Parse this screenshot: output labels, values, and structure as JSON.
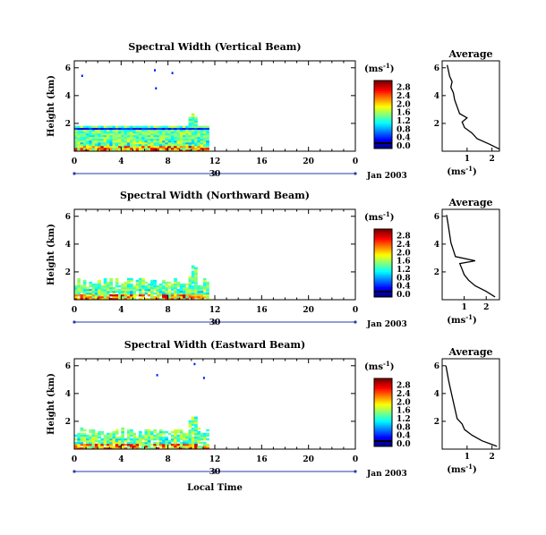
{
  "figure": {
    "xlabel": "Local Time",
    "date_label": "Jan 2003",
    "day_label": "30",
    "unit_label": "(ms",
    "unit_exp": "-1",
    "average_title": "Average"
  },
  "chart_data": [
    {
      "type": "heatmap",
      "title": "Spectral Width (Vertical Beam)",
      "ylabel": "Height (km)",
      "xlim": [
        0,
        24
      ],
      "ylim": [
        0,
        6.5
      ],
      "xticks": [
        "0",
        "4",
        "8",
        "12",
        "16",
        "20",
        "0"
      ],
      "yticks": [
        "2",
        "4",
        "6"
      ],
      "data_end_hour": 11.5,
      "colorbar": {
        "ticks": [
          "0.0",
          "0.4",
          "0.8",
          "1.2",
          "1.6",
          "2.0",
          "2.4",
          "2.8"
        ],
        "range": [
          0,
          3.0
        ],
        "unit": "(ms^-1)"
      },
      "profile": [
        {
          "h": 0.15,
          "w": 2.3
        },
        {
          "h": 0.5,
          "w": 1.9
        },
        {
          "h": 0.9,
          "w": 1.4
        },
        {
          "h": 1.3,
          "w": 1.2
        },
        {
          "h": 1.7,
          "w": 0.9
        },
        {
          "h": 2.1,
          "w": 0.8
        },
        {
          "h": 2.4,
          "w": 1.0
        },
        {
          "h": 2.7,
          "w": 0.7
        },
        {
          "h": 3.2,
          "w": 0.6
        },
        {
          "h": 3.7,
          "w": 0.5
        },
        {
          "h": 4.2,
          "w": 0.45
        },
        {
          "h": 4.6,
          "w": 0.35
        },
        {
          "h": 5.0,
          "w": 0.4
        },
        {
          "h": 5.4,
          "w": 0.3
        },
        {
          "h": 5.8,
          "w": 0.25
        },
        {
          "h": 6.2,
          "w": 0.2
        }
      ],
      "profile_xticks": [
        "1",
        "2"
      ],
      "profile_yticks": [
        "2",
        "4",
        "6"
      ],
      "profile_xlim": [
        0,
        2.3
      ],
      "profile_xlabel": "(ms^-1)"
    },
    {
      "type": "heatmap",
      "title": "Spectral Width (Northward Beam)",
      "ylabel": "Height (km)",
      "xlim": [
        0,
        24
      ],
      "ylim": [
        0,
        6.5
      ],
      "xticks": [
        "0",
        "4",
        "8",
        "12",
        "16",
        "20",
        "0"
      ],
      "yticks": [
        "2",
        "4",
        "6"
      ],
      "data_end_hour": 11.5,
      "colorbar": {
        "ticks": [
          "0.0",
          "0.4",
          "0.8",
          "1.2",
          "1.6",
          "2.0",
          "2.4",
          "2.8"
        ],
        "range": [
          0,
          3.0
        ],
        "unit": "(ms^-1)"
      },
      "profile": [
        {
          "h": 0.2,
          "w": 2.4
        },
        {
          "h": 0.6,
          "w": 2.0
        },
        {
          "h": 1.0,
          "w": 1.5
        },
        {
          "h": 1.4,
          "w": 1.2
        },
        {
          "h": 1.8,
          "w": 1.0
        },
        {
          "h": 2.2,
          "w": 0.9
        },
        {
          "h": 2.6,
          "w": 0.8
        },
        {
          "h": 2.8,
          "w": 1.5
        },
        {
          "h": 3.1,
          "w": 0.6
        },
        {
          "h": 3.6,
          "w": 0.5
        },
        {
          "h": 4.1,
          "w": 0.4
        },
        {
          "h": 4.6,
          "w": 0.35
        },
        {
          "h": 5.1,
          "w": 0.3
        },
        {
          "h": 5.6,
          "w": 0.25
        },
        {
          "h": 6.1,
          "w": 0.2
        }
      ],
      "profile_xticks": [
        "1",
        "2"
      ],
      "profile_yticks": [
        "2",
        "4",
        "6"
      ],
      "profile_xlim": [
        0,
        2.6
      ],
      "profile_xlabel": "(ms^-1)"
    },
    {
      "type": "heatmap",
      "title": "Spectral Width (Eastward Beam)",
      "ylabel": "Height (km)",
      "xlim": [
        0,
        24
      ],
      "ylim": [
        0,
        6.5
      ],
      "xticks": [
        "0",
        "4",
        "8",
        "12",
        "16",
        "20",
        "0"
      ],
      "yticks": [
        "2",
        "4",
        "6"
      ],
      "data_end_hour": 11.5,
      "colorbar": {
        "ticks": [
          "0.0",
          "0.4",
          "0.8",
          "1.2",
          "1.6",
          "2.0",
          "2.4",
          "2.8"
        ],
        "range": [
          0,
          3.0
        ],
        "unit": "(ms^-1)"
      },
      "profile": [
        {
          "h": 0.2,
          "w": 2.2
        },
        {
          "h": 0.6,
          "w": 1.6
        },
        {
          "h": 1.0,
          "w": 1.2
        },
        {
          "h": 1.4,
          "w": 0.9
        },
        {
          "h": 1.8,
          "w": 0.8
        },
        {
          "h": 2.2,
          "w": 0.6
        },
        {
          "h": 2.6,
          "w": 0.55
        },
        {
          "h": 3.0,
          "w": 0.5
        },
        {
          "h": 3.4,
          "w": 0.45
        },
        {
          "h": 3.8,
          "w": 0.4
        },
        {
          "h": 4.2,
          "w": 0.35
        },
        {
          "h": 4.6,
          "w": 0.3
        },
        {
          "h": 5.0,
          "w": 0.25
        },
        {
          "h": 5.5,
          "w": 0.2
        },
        {
          "h": 6.0,
          "w": 0.15
        }
      ],
      "profile_xticks": [
        "1",
        "2"
      ],
      "profile_yticks": [
        "2",
        "4",
        "6"
      ],
      "profile_xlim": [
        0,
        2.3
      ],
      "profile_xlabel": "(ms^-1)"
    }
  ]
}
